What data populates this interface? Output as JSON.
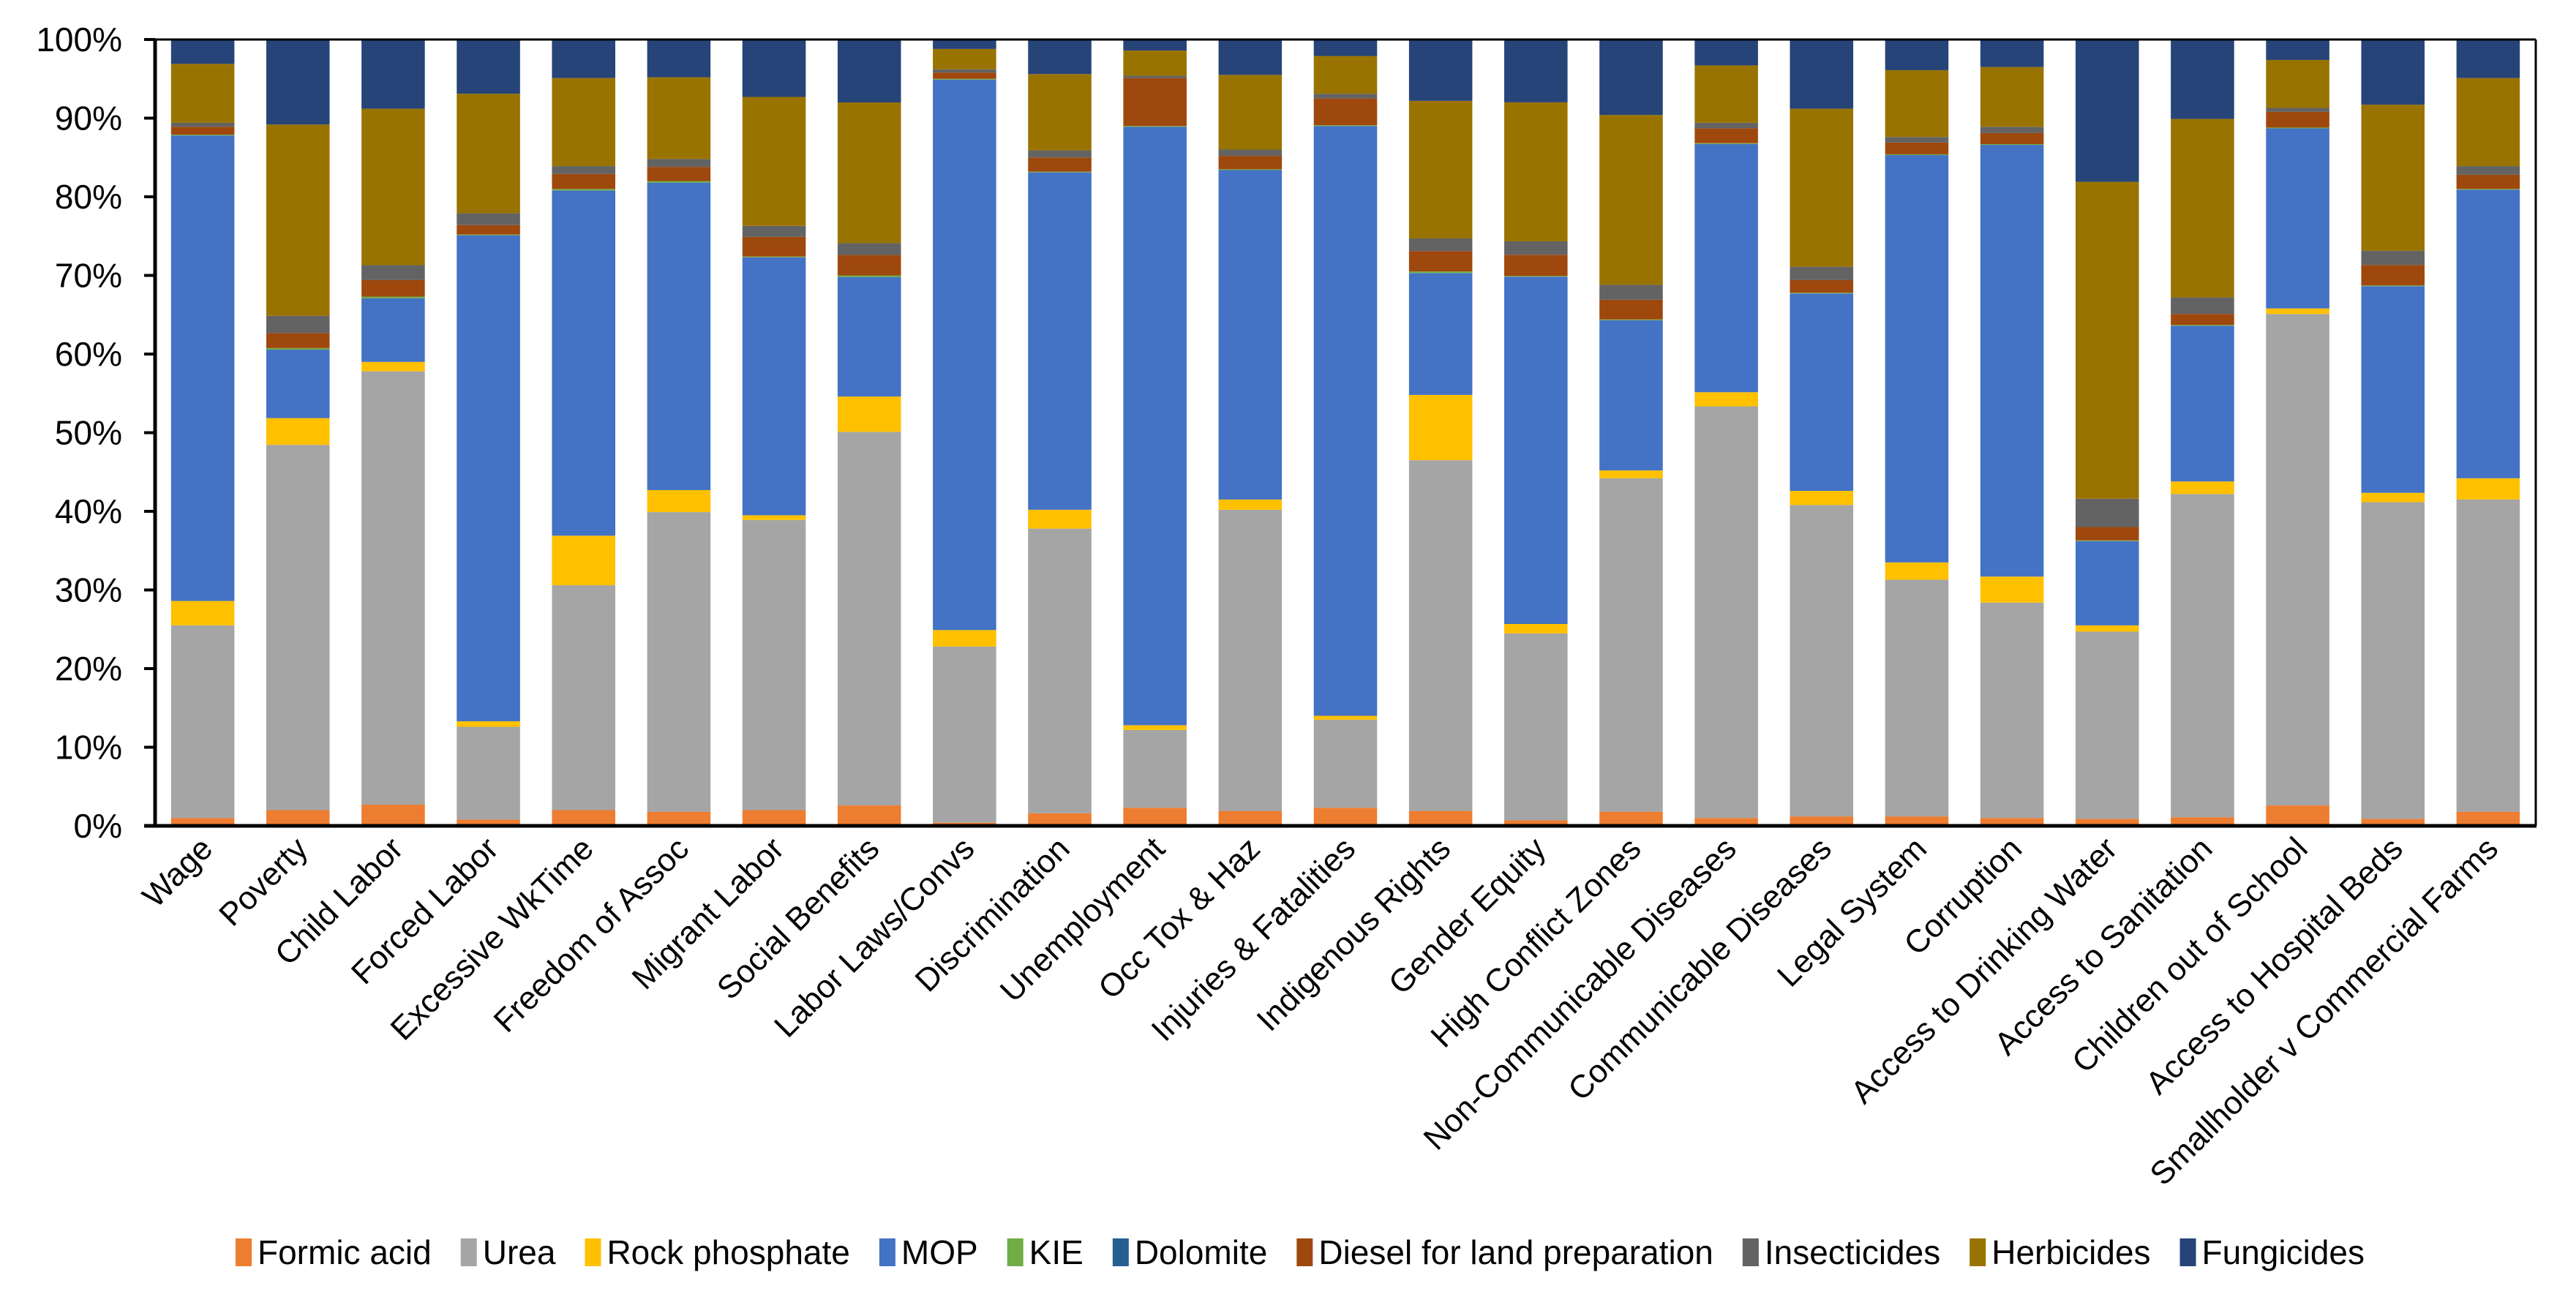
{
  "chart_data": {
    "type": "bar",
    "stacked": true,
    "normalized": true,
    "title": "",
    "xlabel": "",
    "ylabel": "",
    "ylim": [
      0,
      100
    ],
    "y_ticks": [
      "0%",
      "10%",
      "20%",
      "30%",
      "40%",
      "50%",
      "60%",
      "70%",
      "80%",
      "90%",
      "100%"
    ],
    "grid": false,
    "legend_position": "bottom",
    "categories": [
      "Wage",
      "Poverty",
      "Child Labor",
      "Forced Labor",
      "Excessive WkTime",
      "Freedom of Assoc",
      "Migrant Labor",
      "Social Benefits",
      "Labor Laws/Convs",
      "Discrimination",
      "Unemployment",
      "Occ Tox & Haz",
      "Injuries & Fatalities",
      "Indigenous Rights",
      "Gender Equity",
      "High Conflict Zones",
      "Non-Communicable Diseases",
      "Communicable Diseases",
      "Legal System",
      "Corruption",
      "Access to Drinking Water",
      "Access to Sanitation",
      "Children out of School",
      "Access to Hospital Beds",
      "Smallholder v Commercial Farms"
    ],
    "series": [
      {
        "name": "Formic acid",
        "color": "#ED7D31",
        "values": [
          1.0,
          2.0,
          2.7,
          0.8,
          2.0,
          1.8,
          2.0,
          2.6,
          0.4,
          1.6,
          2.3,
          1.9,
          2.3,
          1.9,
          0.7,
          1.8,
          1.0,
          1.2,
          1.2,
          1.0,
          0.9,
          1.1,
          2.6,
          0.9,
          1.8
        ]
      },
      {
        "name": "Urea",
        "color": "#A5A5A5",
        "values": [
          24.5,
          46.4,
          55.1,
          11.8,
          28.6,
          38.1,
          36.9,
          47.5,
          22.4,
          36.2,
          9.9,
          38.3,
          11.2,
          44.6,
          23.8,
          42.4,
          52.4,
          39.6,
          30.1,
          27.4,
          23.8,
          41.1,
          62.5,
          40.3,
          39.7
        ]
      },
      {
        "name": "Rock phosphate",
        "color": "#FFC000",
        "values": [
          3.1,
          3.4,
          1.2,
          0.7,
          6.3,
          2.8,
          0.6,
          4.5,
          2.1,
          2.4,
          0.6,
          1.3,
          0.5,
          8.3,
          1.2,
          1.0,
          1.8,
          1.8,
          2.2,
          3.3,
          0.8,
          1.6,
          0.7,
          1.2,
          2.7
        ]
      },
      {
        "name": "MOP",
        "color": "#4472C4",
        "values": [
          59.2,
          8.7,
          8.1,
          61.8,
          43.9,
          39.1,
          32.8,
          15.2,
          70.0,
          42.9,
          76.1,
          41.9,
          75.0,
          15.5,
          44.2,
          19.1,
          31.6,
          25.1,
          51.8,
          54.9,
          10.7,
          19.8,
          22.9,
          26.3,
          36.7
        ]
      },
      {
        "name": "KIE",
        "color": "#70AD47",
        "values": [
          0.1,
          0.2,
          0.2,
          0.1,
          0.2,
          0.2,
          0.1,
          0.2,
          0.1,
          0.1,
          0.1,
          0.1,
          0.1,
          0.2,
          0.1,
          0.1,
          0.1,
          0.1,
          0.1,
          0.1,
          0.1,
          0.1,
          0.1,
          0.1,
          0.1
        ]
      },
      {
        "name": "Dolomite",
        "color": "#255E91",
        "values": [
          0,
          0,
          0,
          0,
          0,
          0,
          0,
          0,
          0,
          0,
          0,
          0,
          0,
          0,
          0,
          0,
          0,
          0,
          0,
          0,
          0,
          0,
          0,
          0,
          0
        ]
      },
      {
        "name": "Diesel for land preparation",
        "color": "#9E480E",
        "values": [
          1.0,
          1.9,
          2.1,
          1.2,
          1.9,
          1.8,
          2.5,
          2.6,
          0.8,
          1.8,
          6.1,
          1.7,
          3.4,
          2.6,
          2.7,
          2.5,
          1.9,
          1.6,
          1.5,
          1.4,
          1.7,
          1.4,
          2.0,
          2.6,
          1.8
        ]
      },
      {
        "name": "Insecticides",
        "color": "#636363",
        "values": [
          0.5,
          2.2,
          1.9,
          1.5,
          1.0,
          1.0,
          1.4,
          1.5,
          0.4,
          0.9,
          0.3,
          0.8,
          0.6,
          1.6,
          1.7,
          1.9,
          0.7,
          1.7,
          0.7,
          0.8,
          3.6,
          2.1,
          0.5,
          1.8,
          1.1
        ]
      },
      {
        "name": "Herbicides",
        "color": "#997300",
        "values": [
          7.5,
          24.3,
          19.9,
          15.2,
          11.2,
          10.4,
          16.4,
          17.9,
          2.6,
          9.7,
          3.2,
          9.5,
          4.8,
          17.5,
          17.7,
          21.6,
          7.3,
          20.1,
          8.5,
          7.6,
          40.3,
          22.7,
          6.1,
          18.6,
          11.2
        ]
      },
      {
        "name": "Fungicides",
        "color": "#264478",
        "values": [
          3.1,
          10.8,
          8.8,
          6.9,
          4.9,
          4.8,
          7.3,
          8.0,
          1.2,
          4.4,
          1.4,
          4.5,
          2.1,
          7.8,
          8.0,
          9.6,
          3.3,
          8.8,
          3.9,
          3.5,
          18.1,
          10.1,
          2.6,
          8.3,
          4.9
        ]
      }
    ]
  }
}
